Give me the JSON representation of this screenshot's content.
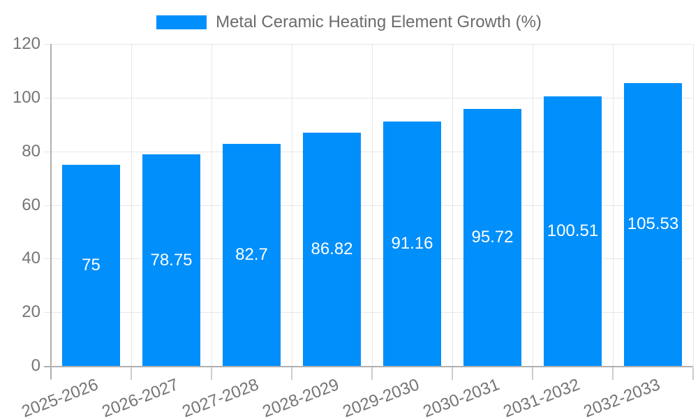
{
  "legend": {
    "label": "Metal Ceramic Heating Element Growth (%)"
  },
  "chart_data": {
    "type": "bar",
    "title": "Metal Ceramic Heating Element Growth (%)",
    "categories": [
      "2025-2026",
      "2026-2027",
      "2027-2028",
      "2028-2029",
      "2029-2030",
      "2030-2031",
      "2031-2032",
      "2032-2033"
    ],
    "series": [
      {
        "name": "Metal Ceramic Heating Element Growth (%)",
        "values": [
          75,
          78.75,
          82.7,
          86.82,
          91.16,
          95.72,
          100.51,
          105.53
        ]
      }
    ],
    "value_labels": [
      "75",
      "78.75",
      "82.7",
      "86.82",
      "91.16",
      "95.72",
      "100.51",
      "105.53"
    ],
    "xlabel": "",
    "ylabel": "",
    "ylim": [
      0,
      120
    ],
    "yticks": [
      0,
      20,
      40,
      60,
      80,
      100,
      120
    ],
    "grid": true,
    "legend_position": "top",
    "x_label_rotation_deg": -21,
    "colors": {
      "bar": "#008FFB",
      "value_label": "#FFFFFF",
      "tick_label": "#757575",
      "legend_label": "#6B6B6B",
      "axis": "#B0B0B0",
      "gridline": "#E6E6E6",
      "x_tick": "#CCCCCC",
      "background": "#FFFFFF"
    }
  }
}
